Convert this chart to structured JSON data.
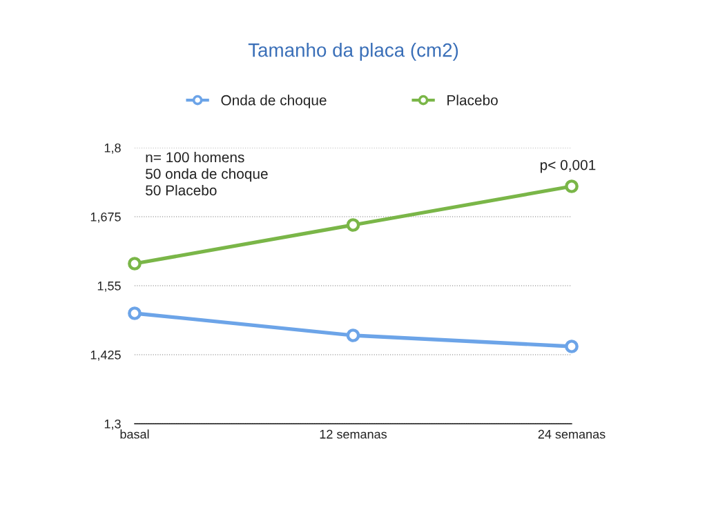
{
  "chart_data": {
    "type": "line",
    "title": "Tamanho da placa (cm2)",
    "categories": [
      "basal",
      "12 semanas",
      "24 semanas"
    ],
    "series": [
      {
        "name": "Onda de choque",
        "color": "#6ca4e8",
        "values": [
          1.5,
          1.46,
          1.44
        ]
      },
      {
        "name": "Placebo",
        "color": "#7ab648",
        "values": [
          1.59,
          1.66,
          1.73
        ]
      }
    ],
    "ylim": [
      1.3,
      1.8
    ],
    "yticks": [
      {
        "value": 1.3,
        "label": "1,3"
      },
      {
        "value": 1.425,
        "label": "1,425"
      },
      {
        "value": 1.55,
        "label": "1,55"
      },
      {
        "value": 1.675,
        "label": "1,675"
      },
      {
        "value": 1.8,
        "label": "1,8"
      }
    ],
    "grid": "y",
    "legend": "top",
    "marker": "circle",
    "line_style": "solid",
    "annotations": [
      "n= 100 homens\n50 onda de choque\n50 Placebo",
      {
        "text": "p< 0,001",
        "x": "24 semanas",
        "y": 1.73
      }
    ]
  }
}
